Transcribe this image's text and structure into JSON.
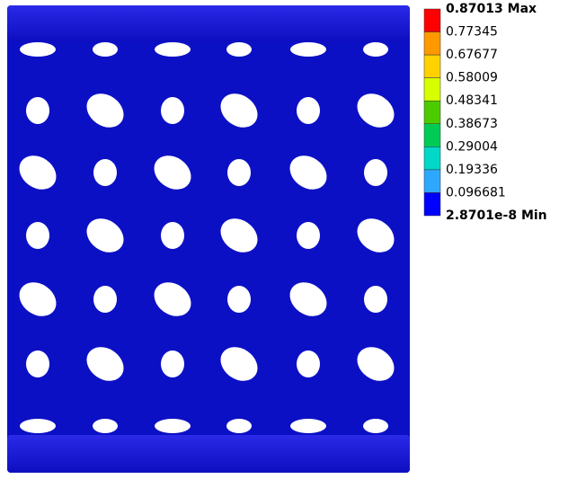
{
  "legend": {
    "labels": [
      "0.87013 Max",
      "0.77345",
      "0.67677",
      "0.58009",
      "0.48341",
      "0.38673",
      "0.29004",
      "0.19336",
      "0.096681",
      "2.8701e-8 Min"
    ],
    "colors": [
      "#ff0000",
      "#ff9900",
      "#ffd200",
      "#d8ff00",
      "#4ccc00",
      "#00cc55",
      "#00d8c8",
      "#2ea8ff",
      "#0000ff"
    ]
  }
}
